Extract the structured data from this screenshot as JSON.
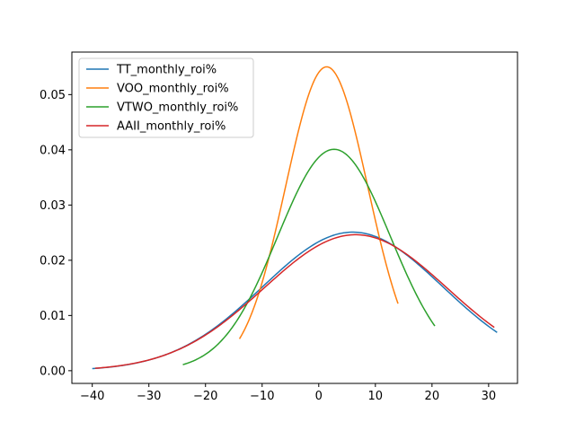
{
  "chart_data": {
    "type": "line",
    "title": "",
    "xlabel": "",
    "ylabel": "",
    "xlim": [
      -43.6,
      35.1
    ],
    "ylim": [
      -0.0023,
      0.0577
    ],
    "x_ticks": [
      -40,
      -30,
      -20,
      -10,
      0,
      10,
      20,
      30
    ],
    "y_ticks": [
      0.0,
      0.01,
      0.02,
      0.03,
      0.04,
      0.05
    ],
    "x_tick_labels": [
      "−40",
      "−30",
      "−20",
      "−10",
      "0",
      "10",
      "20",
      "30"
    ],
    "y_tick_labels": [
      "0.00",
      "0.01",
      "0.02",
      "0.03",
      "0.04",
      "0.05"
    ],
    "grid": false,
    "legend_position": "upper-left",
    "series": [
      {
        "name": "TT_monthly_roi%",
        "color": "#1f77b4",
        "mean": 6.0,
        "std": 15.9,
        "x_range": [
          -40.0,
          31.5
        ]
      },
      {
        "name": "VOO_monthly_roi%",
        "color": "#ff7f0e",
        "mean": 1.4,
        "std": 7.25,
        "x_range": [
          -14.0,
          14.0
        ]
      },
      {
        "name": "VTWO_monthly_roi%",
        "color": "#2ca02c",
        "mean": 2.7,
        "std": 9.95,
        "x_range": [
          -24.0,
          20.5
        ]
      },
      {
        "name": "AAII_monthly_roi%",
        "color": "#d62728",
        "mean": 6.5,
        "std": 16.2,
        "x_range": [
          -39.5,
          31.0
        ]
      }
    ]
  }
}
